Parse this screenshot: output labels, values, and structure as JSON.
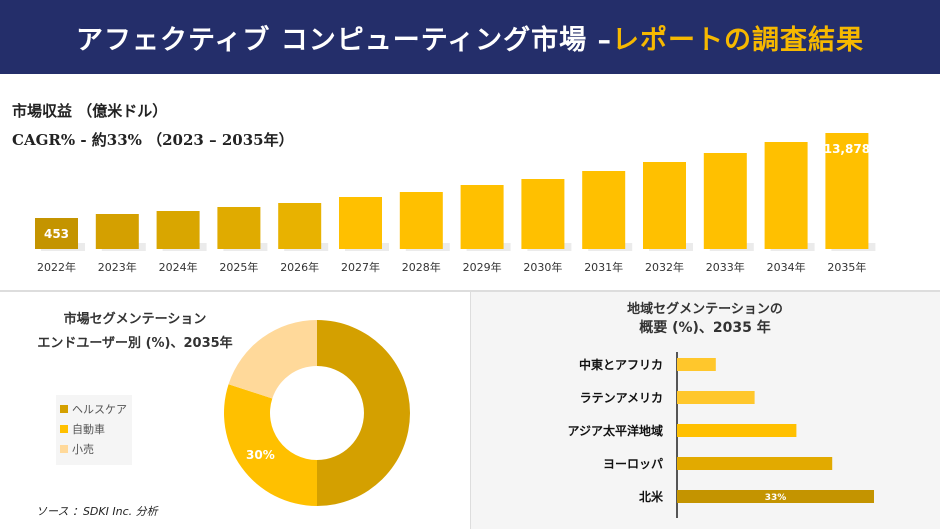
{
  "header": {
    "title_main": "アフェクティブ コンピューティング市場 –",
    "title_highlight": "レポートの調査結果"
  },
  "revenue_title": "市場収益 （億米ドル）",
  "cagr_text": "CAGR% - 約33% （2023 – 2035年）",
  "source": "ソース ：SDKI Inc. 分析",
  "colors": {
    "header_bg": "#242E6A",
    "highlight": "#F6B800",
    "dark_gold": "#C49400",
    "gold": "#D4A000",
    "yellow": "#FFC000",
    "light": "#FFD99A"
  },
  "chart_data": [
    {
      "type": "bar",
      "categories": [
        "2022年",
        "2023年",
        "2024年",
        "2025年",
        "2026年",
        "2027年",
        "2028年",
        "2029年",
        "2030年",
        "2031年",
        "2032年",
        "2033年",
        "2034年",
        "2035年"
      ],
      "values": [
        453,
        null,
        null,
        null,
        null,
        null,
        null,
        null,
        null,
        null,
        null,
        null,
        null,
        13878
      ],
      "data_labels": [
        "453",
        "",
        "",
        "",
        "",
        "",
        "",
        "",
        "",
        "",
        "",
        "",
        "",
        "13,878"
      ],
      "title": "市場収益 （億米ドル）",
      "xlabel": "",
      "ylabel": "",
      "grid": false
    },
    {
      "type": "pie",
      "title": "市場セグメンテーション",
      "subtitle": "エンドユーザー別 (%)、2035年",
      "labels": [
        "ヘルスケア",
        "自動車",
        "小売"
      ],
      "values": [
        50,
        30,
        20
      ],
      "data_labels": [
        "",
        "30%",
        ""
      ],
      "colors": [
        "#D4A000",
        "#FFC000",
        "#FFD99A"
      ],
      "legend": "left"
    },
    {
      "type": "bar",
      "orientation": "horizontal",
      "title": "地域セグメンテーションの",
      "subtitle": "概要 (%)、2035 年",
      "categories": [
        "中東とアフリカ",
        "ラテンアメリカ",
        "アジア太平洋地域",
        "ヨーロッパ",
        "北米"
      ],
      "values": [
        6.5,
        13,
        20,
        26,
        33
      ],
      "data_labels": [
        "",
        "",
        "",
        "",
        "33%"
      ],
      "colors": [
        "#FFC72C",
        "#FFC72C",
        "#FFC000",
        "#E2AA00",
        "#C49400"
      ]
    }
  ]
}
